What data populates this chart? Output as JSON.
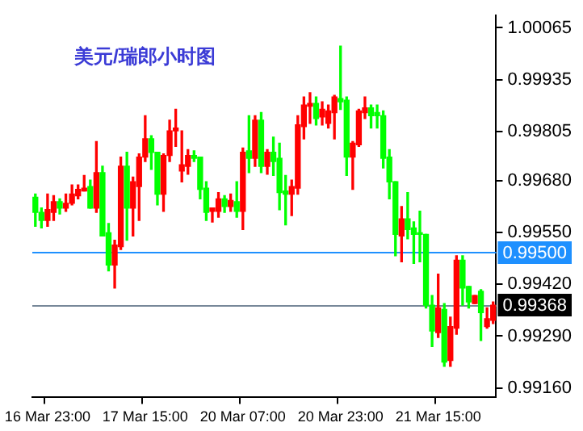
{
  "chart_data": {
    "type": "candlestick",
    "title": "美元/瑞郎小时图",
    "categories": [
      null,
      null,
      "16 Mar 23:00",
      null,
      null,
      null,
      null,
      null,
      null,
      null,
      null,
      null,
      null,
      null,
      null,
      null,
      null,
      null,
      "17 Mar 15:00",
      null,
      null,
      null,
      null,
      null,
      null,
      null,
      null,
      null,
      null,
      null,
      null,
      null,
      null,
      null,
      "20 Mar 07:00",
      null,
      null,
      null,
      null,
      null,
      null,
      null,
      null,
      null,
      null,
      null,
      null,
      null,
      null,
      null,
      "20 Mar 23:00",
      null,
      null,
      null,
      null,
      null,
      null,
      null,
      null,
      null,
      null,
      null,
      null,
      null,
      null,
      null,
      "21 Mar 15:00",
      null,
      null,
      null,
      null,
      null,
      null,
      null,
      null,
      null
    ],
    "ohlc": [
      [
        0.99639,
        0.99647,
        0.99566,
        0.99601
      ],
      [
        0.99601,
        0.99612,
        0.99562,
        0.99581
      ],
      [
        0.99581,
        0.99647,
        0.99566,
        0.99608
      ],
      [
        0.99601,
        0.99643,
        0.99581,
        0.99628
      ],
      [
        0.99628,
        0.99635,
        0.99597,
        0.99612
      ],
      [
        0.99612,
        0.99647,
        0.99604,
        0.99624
      ],
      [
        0.99624,
        0.9967,
        0.9962,
        0.99647
      ],
      [
        0.99643,
        0.9967,
        0.99635,
        0.99659
      ],
      [
        0.99655,
        0.99694,
        0.99655,
        0.99662
      ],
      [
        0.99666,
        0.99682,
        0.99612,
        0.99612
      ],
      [
        0.99612,
        0.99779,
        0.99601,
        0.99701
      ],
      [
        0.99701,
        0.99717,
        0.99542,
        0.99542
      ],
      [
        0.9955,
        0.99573,
        0.99454,
        0.99469
      ],
      [
        0.99469,
        0.99531,
        0.99411,
        0.99519
      ],
      [
        0.99515,
        0.9974,
        0.99508,
        0.99717
      ],
      [
        0.99717,
        0.99752,
        0.99531,
        0.99612
      ],
      [
        0.99612,
        0.9969,
        0.99542,
        0.99678
      ],
      [
        0.99666,
        0.99748,
        0.99581,
        0.9974
      ],
      [
        0.9974,
        0.99844,
        0.99729,
        0.99786
      ],
      [
        0.99786,
        0.99794,
        0.99709,
        0.99752
      ],
      [
        0.99752,
        0.99752,
        0.9962,
        0.99647
      ],
      [
        0.99647,
        0.99748,
        0.99604,
        0.99744
      ],
      [
        0.99744,
        0.99833,
        0.99729,
        0.99806
      ],
      [
        0.99806,
        0.9986,
        0.99767,
        0.99813
      ],
      [
        0.99705,
        0.99806,
        0.99678,
        0.99721
      ],
      [
        0.99717,
        0.99759,
        0.99697,
        0.99744
      ],
      [
        0.99744,
        0.99756,
        0.99729,
        0.99737
      ],
      [
        0.9974,
        0.9974,
        0.99635,
        0.99659
      ],
      [
        0.99662,
        0.99678,
        0.99581,
        0.99601
      ],
      [
        0.99604,
        0.99612,
        0.99577,
        0.99612
      ],
      [
        0.99604,
        0.99651,
        0.99589,
        0.99635
      ],
      [
        0.99635,
        0.99643,
        0.99601,
        0.99616
      ],
      [
        0.99616,
        0.99647,
        0.99604,
        0.99631
      ],
      [
        0.99628,
        0.99678,
        0.99589,
        0.99604
      ],
      [
        0.99604,
        0.99763,
        0.99558,
        0.99752
      ],
      [
        0.99756,
        0.99844,
        0.99701,
        0.99737
      ],
      [
        0.99737,
        0.99844,
        0.99717,
        0.99833
      ],
      [
        0.99833,
        0.99852,
        0.99701,
        0.99717
      ],
      [
        0.99717,
        0.99759,
        0.99697,
        0.99752
      ],
      [
        0.99752,
        0.9979,
        0.99694,
        0.99729
      ],
      [
        0.99737,
        0.99775,
        0.99608,
        0.99651
      ],
      [
        0.99655,
        0.99694,
        0.9957,
        0.99647
      ],
      [
        0.99647,
        0.99682,
        0.99593,
        0.99666
      ],
      [
        0.99662,
        0.99844,
        0.99647,
        0.99821
      ],
      [
        0.99817,
        0.99891,
        0.99786,
        0.99871
      ],
      [
        0.99868,
        0.99902,
        0.99825,
        0.99875
      ],
      [
        0.99875,
        0.99891,
        0.99821,
        0.99837
      ],
      [
        0.99841,
        0.99879,
        0.99821,
        0.9986
      ],
      [
        0.99825,
        0.99871,
        0.99813,
        0.99856
      ],
      [
        0.99852,
        0.99895,
        0.99786,
        0.99891
      ],
      [
        0.99887,
        1.00019,
        0.9986,
        0.99879
      ],
      [
        0.99883,
        0.99891,
        0.99694,
        0.9974
      ],
      [
        0.9974,
        0.99779,
        0.99659,
        0.99775
      ],
      [
        0.99771,
        0.9986,
        0.99767,
        0.99856
      ],
      [
        0.99852,
        0.99891,
        0.99837,
        0.99864
      ],
      [
        0.99864,
        0.99871,
        0.99813,
        0.99844
      ],
      [
        0.99852,
        0.99871,
        0.99813,
        0.99844
      ],
      [
        0.99844,
        0.99856,
        0.99713,
        0.99737
      ],
      [
        0.9974,
        0.99759,
        0.99635,
        0.99678
      ],
      [
        0.99678,
        0.99678,
        0.99492,
        0.99546
      ],
      [
        0.99542,
        0.99616,
        0.99477,
        0.99585
      ],
      [
        0.99585,
        0.99651,
        0.99535,
        0.99558
      ],
      [
        0.99562,
        0.99577,
        0.99473,
        0.99546
      ],
      [
        0.9955,
        0.99604,
        0.99477,
        0.99546
      ],
      [
        0.99546,
        0.99546,
        0.99361,
        0.99368
      ],
      [
        0.99368,
        0.99392,
        0.99264,
        0.99303
      ],
      [
        0.99299,
        0.99446,
        0.99287,
        0.99361
      ],
      [
        0.99357,
        0.99372,
        0.99214,
        0.99225
      ],
      [
        0.99229,
        0.99338,
        0.99214,
        0.99314
      ],
      [
        0.9931,
        0.99492,
        0.99295,
        0.99481
      ],
      [
        0.99481,
        0.99492,
        0.99368,
        0.99411
      ],
      [
        0.99415,
        0.99415,
        0.99361,
        0.99376
      ],
      [
        0.99372,
        0.99392,
        0.99372,
        0.99392
      ],
      [
        0.99403,
        0.99407,
        0.99279,
        0.99349
      ],
      [
        0.99314,
        0.99361,
        0.9931,
        0.99334
      ],
      [
        0.9933,
        0.99376,
        0.99322,
        0.99368
      ]
    ],
    "colors": [
      "#00ff00",
      "#00ff00",
      "#ff0000",
      "#ff0000",
      "#00ff00",
      "#ff0000",
      "#ff0000",
      "#ff0000",
      "#ff0000",
      "#00ff00",
      "#ff0000",
      "#00ff00",
      "#00ff00",
      "#ff0000",
      "#ff0000",
      "#00ff00",
      "#ff0000",
      "#ff0000",
      "#ff0000",
      "#00ff00",
      "#00ff00",
      "#ff0000",
      "#ff0000",
      "#ff0000",
      "#ff0000",
      "#ff0000",
      "#00ff00",
      "#00ff00",
      "#00ff00",
      "#ff0000",
      "#ff0000",
      "#00ff00",
      "#ff0000",
      "#00ff00",
      "#ff0000",
      "#00ff00",
      "#ff0000",
      "#00ff00",
      "#ff0000",
      "#00ff00",
      "#00ff00",
      "#00ff00",
      "#ff0000",
      "#ff0000",
      "#ff0000",
      "#ff0000",
      "#00ff00",
      "#ff0000",
      "#ff0000",
      "#ff0000",
      "#00ff00",
      "#00ff00",
      "#ff0000",
      "#ff0000",
      "#ff0000",
      "#00ff00",
      "#00ff00",
      "#00ff00",
      "#00ff00",
      "#00ff00",
      "#ff0000",
      "#00ff00",
      "#00ff00",
      "#00ff00",
      "#00ff00",
      "#00ff00",
      "#ff0000",
      "#00ff00",
      "#ff0000",
      "#ff0000",
      "#00ff00",
      "#00ff00",
      "#ff0000",
      "#00ff00",
      "#ff0000",
      "#ff0000"
    ],
    "ylim": [
      0.99136,
      1.00096
    ],
    "yticks": [
      1.00065,
      0.99935,
      0.99805,
      {
        "value": 0.9968,
        "label": "0.99680"
      },
      {
        "value": 0.9955,
        "label": "0.99550"
      },
      {
        "value": 0.9942,
        "label": "0.99420"
      },
      {
        "value": 0.9929,
        "label": "0.99290"
      },
      {
        "value": 0.9916,
        "label": "0.99160"
      }
    ],
    "ref_lines": [
      {
        "axis": "y",
        "value": 0.995,
        "label": "0.99500",
        "color": "#1e90ff"
      },
      {
        "axis": "y",
        "value": 0.99368,
        "label": "0.99368",
        "color": "#778899"
      }
    ],
    "grid": false,
    "legend": false
  }
}
